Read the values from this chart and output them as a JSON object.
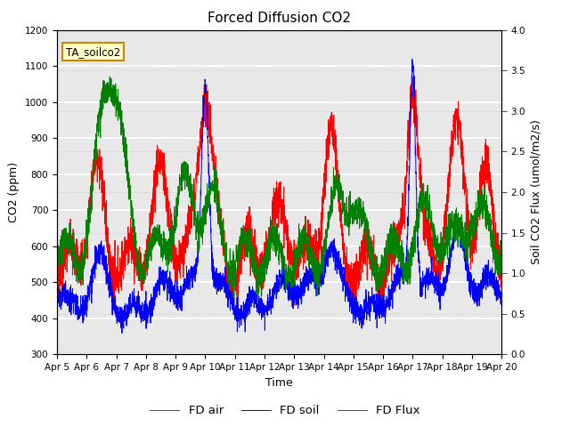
{
  "title": "Forced Diffusion CO2",
  "xlabel": "Time",
  "ylabel_left": "CO2 (ppm)",
  "ylabel_right": "Soil CO2 Flux (umol/m2/s)",
  "ylim_left": [
    300,
    1200
  ],
  "ylim_right": [
    0.0,
    4.0
  ],
  "yticks_left": [
    300,
    400,
    500,
    600,
    700,
    800,
    900,
    1000,
    1100,
    1200
  ],
  "yticks_right": [
    0.0,
    0.5,
    1.0,
    1.5,
    2.0,
    2.5,
    3.0,
    3.5,
    4.0
  ],
  "xtick_labels": [
    "Apr 5",
    "Apr 6",
    "Apr 7",
    "Apr 8",
    "Apr 9",
    "Apr 10",
    "Apr 11",
    "Apr 12",
    "Apr 13",
    "Apr 14",
    "Apr 15",
    "Apr 16",
    "Apr 17",
    "Apr 18",
    "Apr 19",
    "Apr 20"
  ],
  "annotation_text": "TA_soilco2",
  "annotation_bbox_facecolor": "#ffffcc",
  "annotation_bbox_edgecolor": "#cc8800",
  "legend_labels": [
    "FD air",
    "FD soil",
    "FD Flux"
  ],
  "line_colors": [
    "red",
    "blue",
    "green"
  ],
  "plot_bg_color": "#e8e8e8",
  "grid_color": "white",
  "title_fontsize": 11,
  "label_fontsize": 9,
  "tick_fontsize": 7.5
}
